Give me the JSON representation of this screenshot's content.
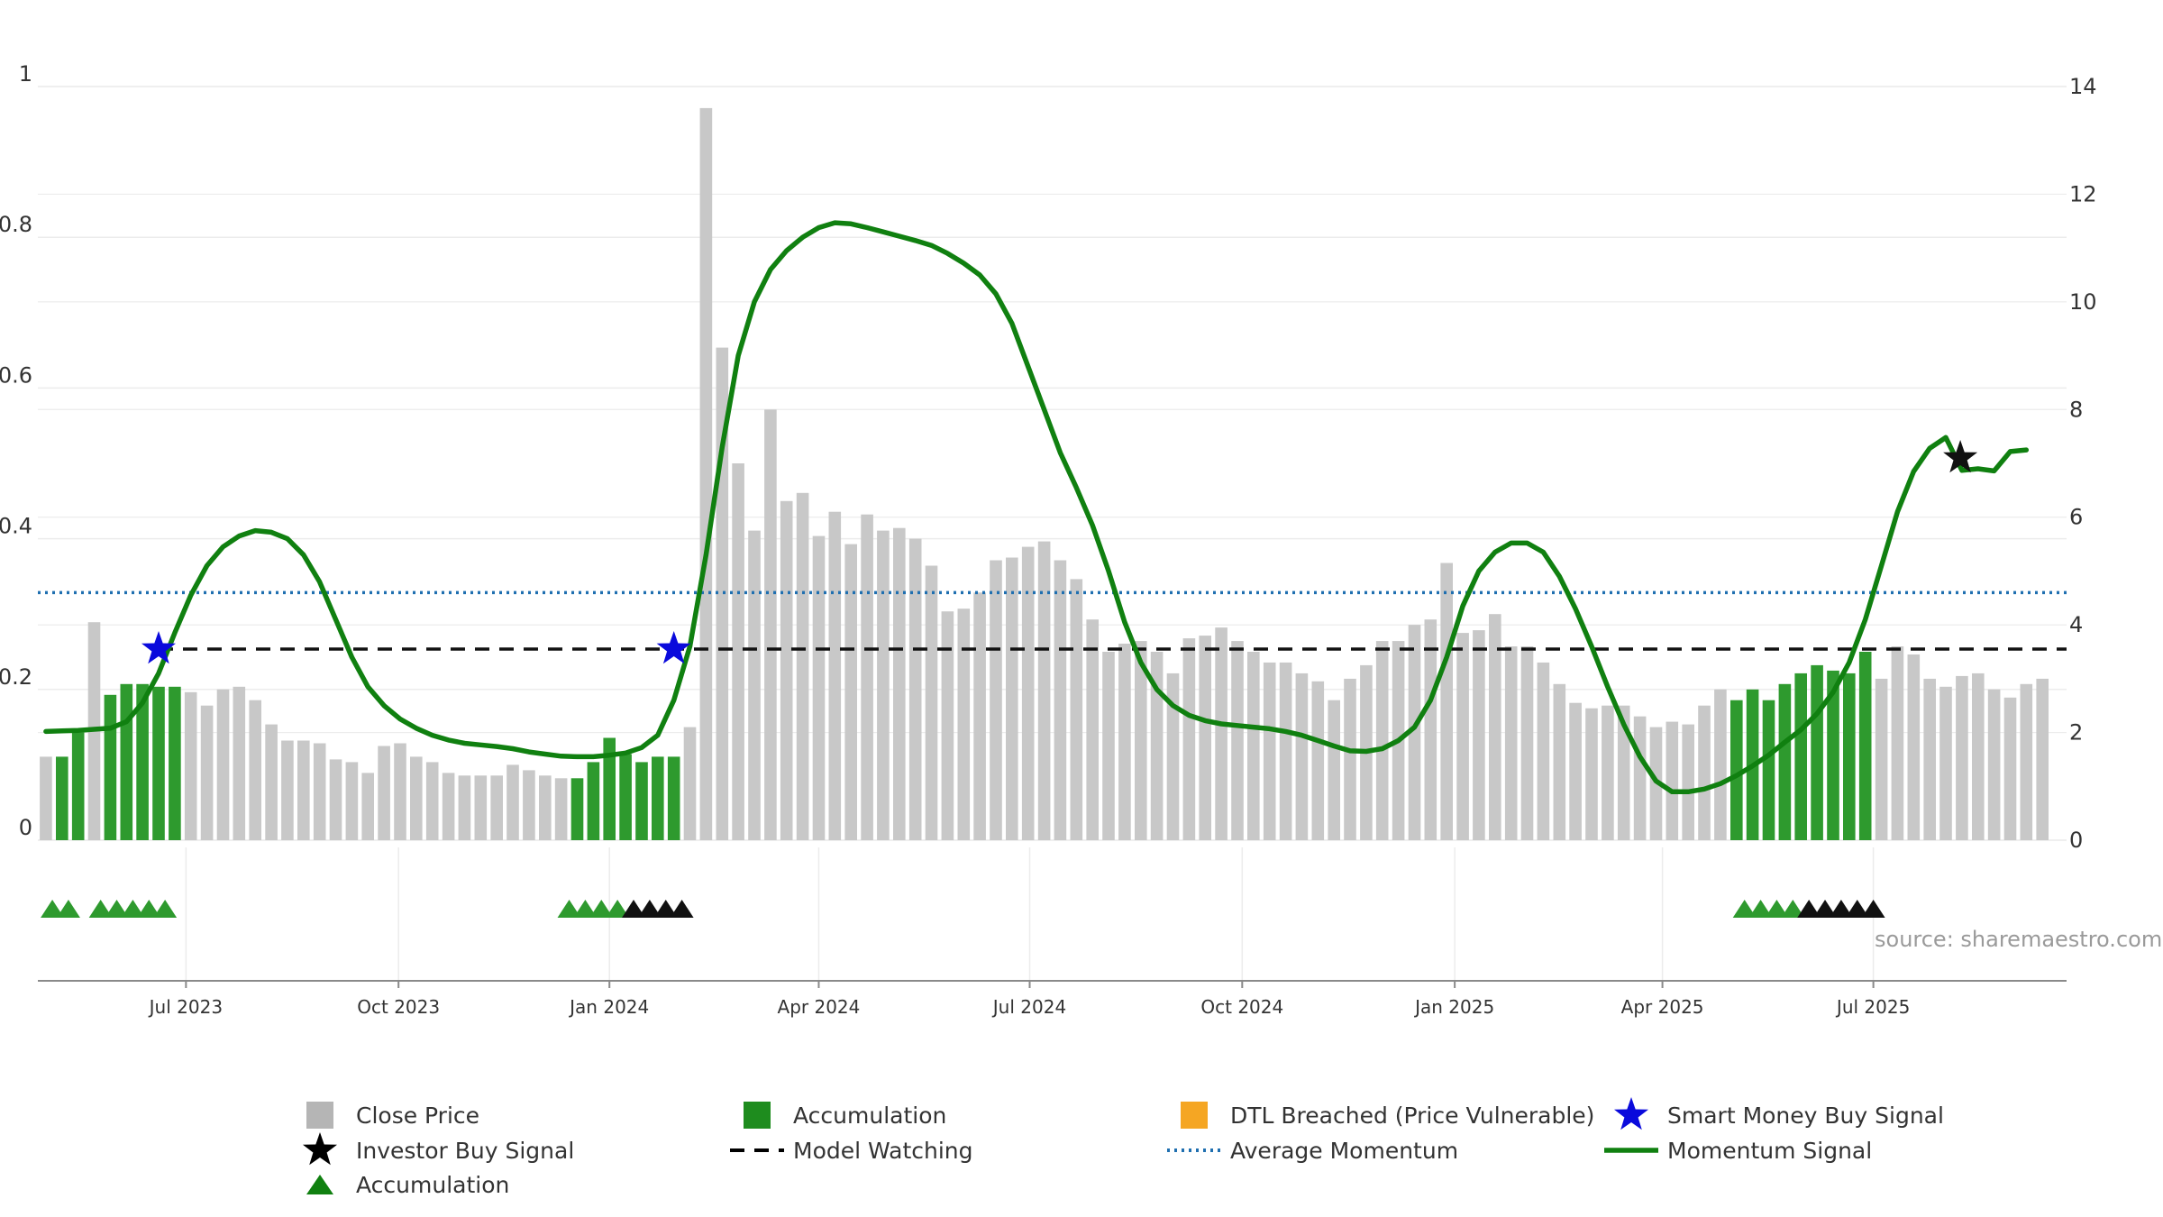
{
  "chart_data": {
    "type": "bar",
    "title": "",
    "xlabel": "",
    "ylabel": "",
    "source": "source: sharemaestro.com",
    "left_axis": {
      "ticks": [
        "0",
        "0.2",
        "0.4",
        "0.6",
        "0.8",
        "1"
      ],
      "tick_values": [
        0,
        0.2,
        0.4,
        0.6,
        0.8,
        1
      ],
      "ylim": [
        0,
        1
      ]
    },
    "right_axis": {
      "ticks": [
        "0",
        "2",
        "4",
        "6",
        "8",
        "10",
        "12",
        "14"
      ],
      "tick_values": [
        0,
        2,
        4,
        6,
        8,
        10,
        12,
        14
      ],
      "ylim": [
        0,
        14
      ]
    },
    "x_range": [
      -0.5,
      125.5
    ],
    "x_ticks": [
      {
        "label": "Jul 2023",
        "pos": 8.7
      },
      {
        "label": "Oct 2023",
        "pos": 21.9
      },
      {
        "label": "Jan 2024",
        "pos": 35.0
      },
      {
        "label": "Apr 2024",
        "pos": 48.0
      },
      {
        "label": "Jul 2024",
        "pos": 61.1
      },
      {
        "label": "Oct 2024",
        "pos": 74.3
      },
      {
        "label": "Jan 2025",
        "pos": 87.5
      },
      {
        "label": "Apr 2025",
        "pos": 100.4
      },
      {
        "label": "Jul 2025",
        "pos": 113.5
      }
    ],
    "close_price": [
      1.55,
      1.55,
      2.0,
      4.05,
      2.7,
      2.9,
      2.9,
      2.85,
      2.85,
      2.75,
      2.5,
      2.8,
      2.85,
      2.6,
      2.15,
      1.85,
      1.85,
      1.8,
      1.5,
      1.45,
      1.25,
      1.75,
      1.8,
      1.55,
      1.45,
      1.25,
      1.2,
      1.2,
      1.2,
      1.4,
      1.3,
      1.2,
      1.15,
      1.15,
      1.45,
      1.9,
      1.6,
      1.45,
      1.55,
      1.55,
      2.1,
      13.6,
      9.15,
      7.0,
      5.75,
      8.0,
      6.3,
      6.45,
      5.65,
      6.1,
      5.5,
      6.05,
      5.75,
      5.8,
      5.6,
      5.1,
      4.25,
      4.3,
      4.6,
      5.2,
      5.25,
      5.45,
      5.55,
      5.2,
      4.85,
      4.1,
      3.5,
      3.65,
      3.7,
      3.5,
      3.1,
      3.75,
      3.8,
      3.95,
      3.7,
      3.5,
      3.3,
      3.3,
      3.1,
      2.95,
      2.6,
      3.0,
      3.25,
      3.7,
      3.7,
      4.0,
      4.1,
      5.15,
      3.85,
      3.9,
      4.2,
      3.6,
      3.6,
      3.3,
      2.9,
      2.55,
      2.45,
      2.5,
      2.5,
      2.3,
      2.1,
      2.2,
      2.15,
      2.5,
      2.8,
      2.6,
      2.8,
      2.6,
      2.9,
      3.1,
      3.25,
      3.15,
      3.1,
      3.5,
      3.0,
      3.6,
      3.45,
      3.0,
      2.85,
      3.05,
      3.1,
      2.8,
      2.65,
      2.9,
      3.0
    ],
    "accumulation_bars": [
      1,
      2,
      4,
      5,
      6,
      7,
      8,
      33,
      34,
      35,
      36,
      37,
      38,
      39,
      105,
      106,
      107,
      108,
      109,
      110,
      111,
      112,
      113
    ],
    "momentum_signal": [
      2.02,
      2.03,
      2.04,
      2.06,
      2.08,
      2.2,
      2.55,
      3.1,
      3.85,
      4.55,
      5.1,
      5.45,
      5.65,
      5.75,
      5.72,
      5.6,
      5.3,
      4.8,
      4.1,
      3.4,
      2.85,
      2.5,
      2.25,
      2.08,
      1.95,
      1.86,
      1.8,
      1.77,
      1.74,
      1.7,
      1.64,
      1.6,
      1.56,
      1.55,
      1.55,
      1.58,
      1.62,
      1.72,
      1.95,
      2.6,
      3.6,
      5.3,
      7.3,
      9.0,
      10.0,
      10.6,
      10.95,
      11.2,
      11.38,
      11.47,
      11.45,
      11.38,
      11.3,
      11.22,
      11.14,
      11.05,
      10.9,
      10.72,
      10.5,
      10.15,
      9.6,
      8.8,
      8.0,
      7.2,
      6.55,
      5.85,
      5.0,
      4.05,
      3.3,
      2.8,
      2.5,
      2.32,
      2.22,
      2.16,
      2.13,
      2.1,
      2.07,
      2.02,
      1.95,
      1.85,
      1.75,
      1.66,
      1.65,
      1.7,
      1.85,
      2.1,
      2.6,
      3.4,
      4.35,
      5.0,
      5.35,
      5.52,
      5.52,
      5.35,
      4.9,
      4.3,
      3.6,
      2.85,
      2.15,
      1.55,
      1.1,
      0.9,
      0.9,
      0.95,
      1.05,
      1.2,
      1.38,
      1.58,
      1.82,
      2.05,
      2.35,
      2.75,
      3.3,
      4.1,
      5.1,
      6.1,
      6.85,
      7.28,
      7.48,
      6.87,
      6.9,
      6.86,
      7.22,
      7.25
    ],
    "model_watching": 3.55,
    "average_momentum": 4.6,
    "smart_money_buy_signals": [
      {
        "x": 7.0,
        "value": 3.55
      },
      {
        "x": 39.0,
        "value": 3.55
      }
    ],
    "investor_buy_signals": [
      {
        "x": 118.9,
        "value": 7.1
      }
    ],
    "accumulation_triangles": [
      0.4,
      1.4,
      3.4,
      4.4,
      5.4,
      6.4,
      7.4,
      32.5,
      33.5,
      34.5,
      35.5,
      105.5,
      106.5,
      107.5,
      108.5
    ],
    "black_triangles": [
      36.5,
      37.5,
      38.5,
      39.5,
      109.5,
      110.5,
      111.5,
      112.5,
      113.5
    ],
    "legend": [
      {
        "label": "Close Price",
        "marker": "square",
        "color": "#b5b5b5"
      },
      {
        "label": "Accumulation",
        "marker": "square",
        "color": "#1e8c1e"
      },
      {
        "label": "DTL Breached (Price Vulnerable)",
        "marker": "square",
        "color": "#f5a623"
      },
      {
        "label": "Smart Money Buy Signal",
        "marker": "star",
        "color": "#0a0adc"
      },
      {
        "label": "Investor Buy Signal",
        "marker": "star",
        "color": "#000000"
      },
      {
        "label": "Model Watching",
        "marker": "dashed-line",
        "color": "#000000"
      },
      {
        "label": "Average Momentum",
        "marker": "dotted-line",
        "color": "#1f6fb0"
      },
      {
        "label": "Momentum Signal",
        "marker": "solid-line",
        "color": "#108010"
      },
      {
        "label": "Accumulation",
        "marker": "triangle",
        "color": "#108010"
      }
    ],
    "colors": {
      "close_price": "#c8c8c8",
      "accumulation": "#2e9a2e",
      "momentum": "#108010",
      "model_watching": "#111111",
      "average_momentum": "#1f6fb0",
      "smart_money": "#0a0adc",
      "investor": "#111111",
      "grid": "#ececec",
      "axis": "#8a8a8a"
    }
  }
}
